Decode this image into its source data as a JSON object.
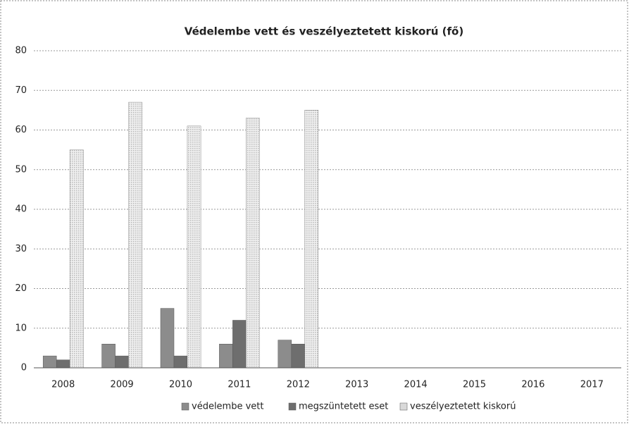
{
  "chart_data": {
    "type": "bar",
    "title": "Védelembe vett és veszélyeztetett kiskorú (fő)",
    "categories": [
      "2008",
      "2009",
      "2010",
      "2011",
      "2012",
      "2013",
      "2014",
      "2015",
      "2016",
      "2017"
    ],
    "series": [
      {
        "name": "védelembe vett",
        "color": "#8c8c8c",
        "values": [
          3,
          6,
          15,
          6,
          7,
          null,
          null,
          null,
          null,
          null
        ]
      },
      {
        "name": "megszüntetett eset",
        "color": "#6e6e6e",
        "values": [
          2,
          3,
          3,
          12,
          6,
          null,
          null,
          null,
          null,
          null
        ]
      },
      {
        "name": "veszélyeztetett kiskorú",
        "color": "#d9d9d9",
        "values": [
          55,
          67,
          61,
          63,
          65,
          null,
          null,
          null,
          null,
          null
        ]
      }
    ],
    "ylim": [
      0,
      80
    ],
    "yticks": [
      0,
      10,
      20,
      30,
      40,
      50,
      60,
      70,
      80
    ],
    "grid": true,
    "legend": "bottom"
  }
}
